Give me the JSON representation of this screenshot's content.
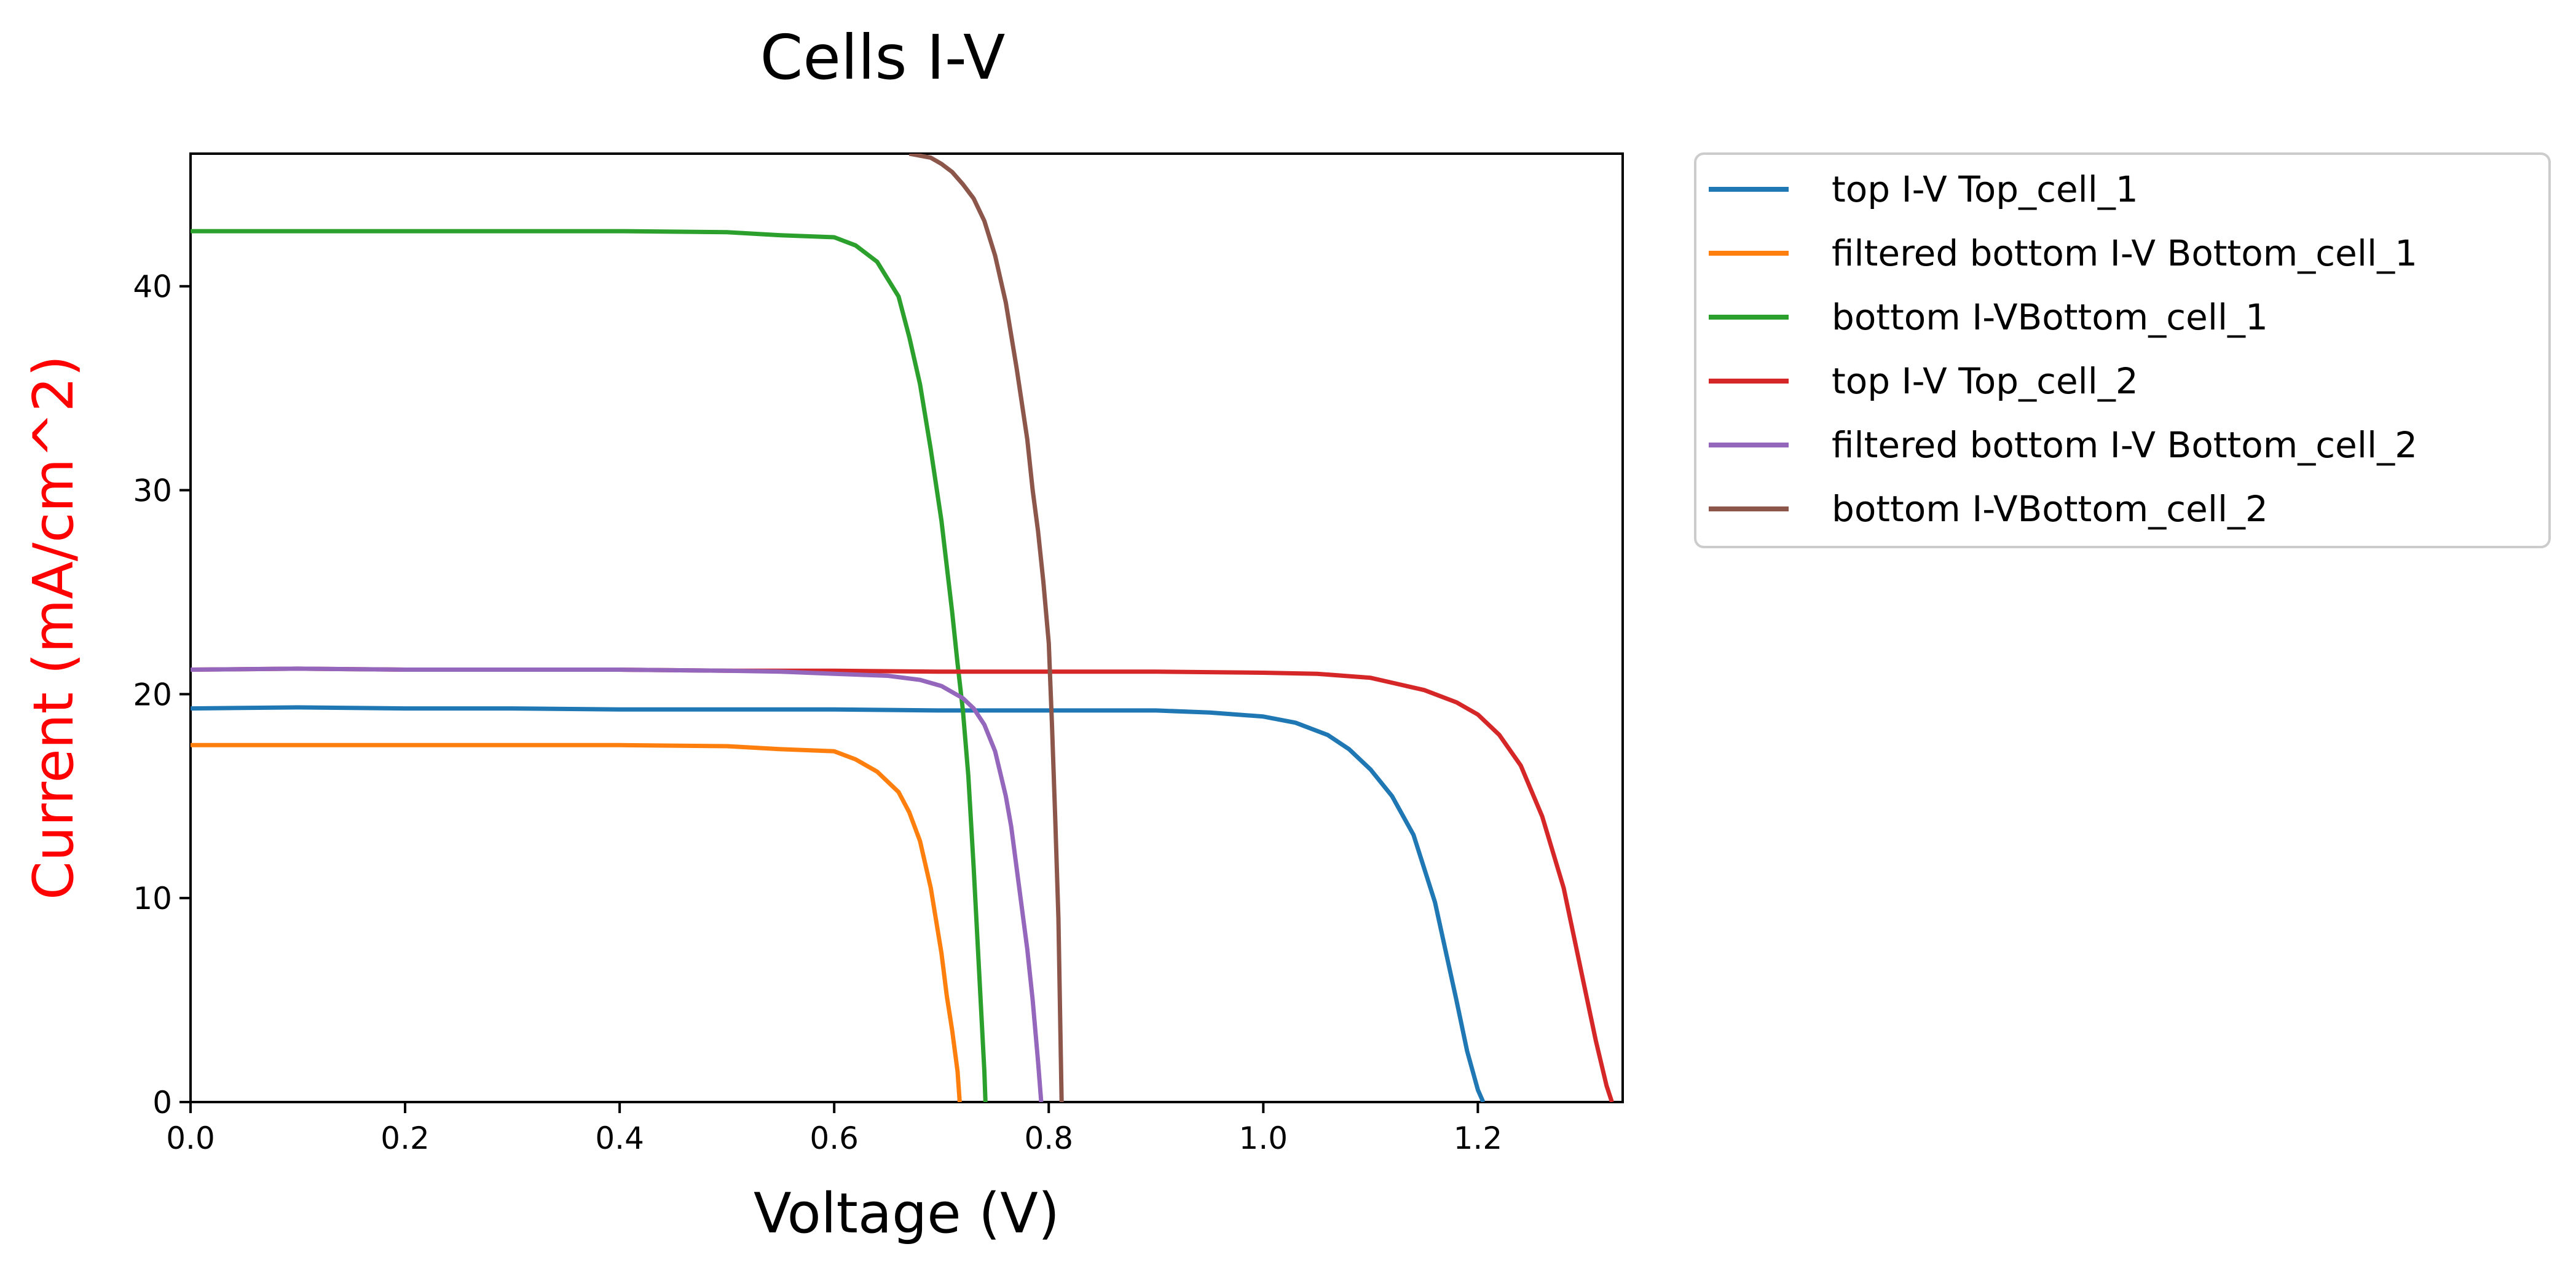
{
  "chart_data": {
    "type": "line",
    "title": "Cells I-V",
    "xlabel": "Voltage (V)",
    "ylabel": "Current (mA/cm^2)",
    "ylabel_color": "#ff0000",
    "xlim": [
      0.0,
      1.335
    ],
    "ylim": [
      0,
      46.5
    ],
    "xticks": [
      "0.0",
      "0.2",
      "0.4",
      "0.6",
      "0.8",
      "1.0",
      "1.2"
    ],
    "xtick_values": [
      0.0,
      0.2,
      0.4,
      0.6,
      0.8,
      1.0,
      1.2
    ],
    "yticks": [
      "0",
      "10",
      "20",
      "30",
      "40"
    ],
    "ytick_values": [
      0,
      10,
      20,
      30,
      40
    ],
    "grid": false,
    "legend_position": "outside-right-top",
    "series": [
      {
        "name": "top I-V Top_cell_1",
        "color": "#1f77b4",
        "x": [
          0.0,
          0.1,
          0.2,
          0.3,
          0.4,
          0.5,
          0.6,
          0.7,
          0.8,
          0.9,
          0.95,
          1.0,
          1.03,
          1.06,
          1.08,
          1.1,
          1.12,
          1.14,
          1.16,
          1.18,
          1.19,
          1.2,
          1.205
        ],
        "y": [
          19.3,
          19.35,
          19.3,
          19.3,
          19.25,
          19.25,
          19.25,
          19.2,
          19.2,
          19.2,
          19.1,
          18.9,
          18.6,
          18.0,
          17.3,
          16.3,
          15.0,
          13.1,
          9.8,
          5.0,
          2.5,
          0.6,
          0.0
        ]
      },
      {
        "name": "filtered bottom I-V Bottom_cell_1",
        "color": "#ff7f0e",
        "x": [
          0.0,
          0.1,
          0.2,
          0.3,
          0.4,
          0.5,
          0.55,
          0.6,
          0.62,
          0.64,
          0.66,
          0.67,
          0.68,
          0.69,
          0.7,
          0.705,
          0.71,
          0.715,
          0.717
        ],
        "y": [
          17.5,
          17.5,
          17.5,
          17.5,
          17.5,
          17.45,
          17.3,
          17.2,
          16.8,
          16.2,
          15.2,
          14.2,
          12.8,
          10.5,
          7.3,
          5.2,
          3.5,
          1.5,
          0.0
        ]
      },
      {
        "name": "bottom I-VBottom_cell_1",
        "color": "#2ca02c",
        "x": [
          0.0,
          0.1,
          0.2,
          0.3,
          0.4,
          0.5,
          0.55,
          0.6,
          0.62,
          0.64,
          0.66,
          0.67,
          0.68,
          0.69,
          0.7,
          0.71,
          0.715,
          0.72,
          0.725,
          0.73,
          0.735,
          0.74,
          0.741
        ],
        "y": [
          42.7,
          42.7,
          42.7,
          42.7,
          42.7,
          42.65,
          42.5,
          42.4,
          42.0,
          41.2,
          39.5,
          37.5,
          35.2,
          32.0,
          28.5,
          24.0,
          21.5,
          19.2,
          16.0,
          11.5,
          6.5,
          1.5,
          0.0
        ]
      },
      {
        "name": "top I-V Top_cell_2",
        "color": "#d62728",
        "x": [
          0.0,
          0.1,
          0.2,
          0.3,
          0.4,
          0.5,
          0.6,
          0.7,
          0.8,
          0.9,
          1.0,
          1.05,
          1.1,
          1.15,
          1.18,
          1.2,
          1.22,
          1.24,
          1.26,
          1.28,
          1.3,
          1.31,
          1.32,
          1.325
        ],
        "y": [
          21.2,
          21.25,
          21.2,
          21.2,
          21.2,
          21.15,
          21.15,
          21.1,
          21.1,
          21.1,
          21.05,
          21.0,
          20.8,
          20.2,
          19.6,
          19.0,
          18.0,
          16.5,
          14.0,
          10.5,
          5.5,
          3.0,
          0.8,
          0.0
        ]
      },
      {
        "name": "filtered bottom I-V Bottom_cell_2",
        "color": "#9467bd",
        "x": [
          0.0,
          0.1,
          0.2,
          0.3,
          0.4,
          0.5,
          0.55,
          0.6,
          0.65,
          0.68,
          0.7,
          0.72,
          0.73,
          0.74,
          0.75,
          0.76,
          0.765,
          0.77,
          0.775,
          0.78,
          0.785,
          0.79,
          0.793
        ],
        "y": [
          21.2,
          21.25,
          21.2,
          21.2,
          21.2,
          21.15,
          21.1,
          21.0,
          20.9,
          20.7,
          20.4,
          19.8,
          19.3,
          18.5,
          17.2,
          15.0,
          13.5,
          11.5,
          9.5,
          7.5,
          5.0,
          2.0,
          0.0
        ]
      },
      {
        "name": "bottom I-VBottom_cell_2",
        "color": "#8c564b",
        "x": [
          0.67,
          0.69,
          0.7,
          0.71,
          0.72,
          0.73,
          0.74,
          0.75,
          0.76,
          0.77,
          0.78,
          0.785,
          0.79,
          0.795,
          0.8,
          0.803,
          0.806,
          0.809,
          0.812
        ],
        "y": [
          46.5,
          46.3,
          46.0,
          45.6,
          45.0,
          44.3,
          43.2,
          41.5,
          39.2,
          36.0,
          32.5,
          30.0,
          28.0,
          25.5,
          22.5,
          18.5,
          14.0,
          9.0,
          0.0
        ]
      }
    ]
  }
}
